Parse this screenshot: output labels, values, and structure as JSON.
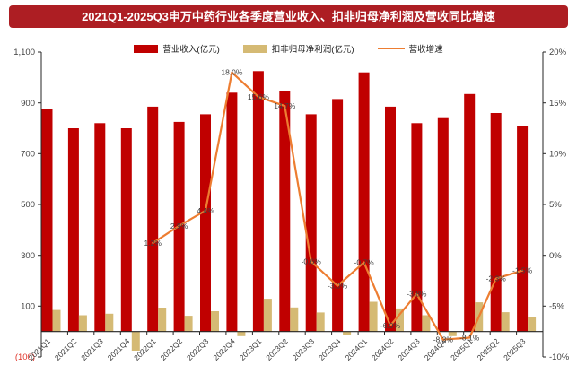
{
  "title": {
    "text": "2021Q1-2025Q3申万中药行业各季度营业收入、扣非归母净利润及营收同比增速"
  },
  "legend": {
    "items": [
      {
        "label": "营业收入(亿元)",
        "swatch": "revenue-bar-swatch"
      },
      {
        "label": "扣非归母净利润(亿元)",
        "swatch": "profit-bar-swatch"
      },
      {
        "label": "营收增速",
        "swatch": "growth-line-swatch"
      }
    ]
  },
  "colors": {
    "banner_bg": "#ad1e23",
    "banner_text": "#ffffff",
    "revenue_bar": "#c00000",
    "profit_bar": "#d5ba74",
    "growth_line": "#ed7d31",
    "axis_text": "#404040",
    "negative_tick_text": "#e0352b",
    "data_label_text": "#3f3f3f",
    "spine": "#262626"
  },
  "chart_data": {
    "type": "bar",
    "title": "2021Q1-2025Q3申万中药行业各季度营业收入、扣非归母净利润及营收同比增速",
    "categories": [
      "2021Q1",
      "2021Q2",
      "2021Q3",
      "2021Q4",
      "2022Q1",
      "2022Q2",
      "2022Q3",
      "2022Q4",
      "2023Q1",
      "2023Q2",
      "2023Q3",
      "2023Q4",
      "2024Q1",
      "2024Q2",
      "2024Q3",
      "2024Q4",
      "2025Q1",
      "2025Q2",
      "2025Q3"
    ],
    "series": [
      {
        "name": "营业收入(亿元)",
        "type": "bar",
        "axis": "left",
        "values": [
          875,
          800,
          820,
          800,
          885,
          825,
          855,
          940,
          1025,
          945,
          855,
          915,
          1020,
          885,
          820,
          840,
          935,
          860,
          810
        ]
      },
      {
        "name": "扣非归母净利润(亿元)",
        "type": "bar",
        "axis": "left",
        "values": [
          85,
          64,
          70,
          -75,
          94,
          62,
          80,
          -18,
          129,
          95,
          75,
          -13,
          117,
          91,
          64,
          -18,
          115,
          76,
          58
        ]
      },
      {
        "name": "营收增速",
        "type": "line",
        "axis": "right",
        "values": [
          null,
          null,
          null,
          null,
          1.2,
          2.9,
          4.4,
          18.0,
          15.6,
          14.7,
          -0.6,
          -3.0,
          -0.7,
          -6.9,
          -3.8,
          -8.3,
          -8.1,
          -2.3,
          -1.5
        ],
        "labels": [
          null,
          null,
          null,
          null,
          "1.2%",
          "2.9%",
          "4.4%",
          "18.0%",
          "15.6%",
          "14.7%",
          "-0.6%",
          "-3.0%",
          "-0.7%",
          "-6.9%",
          "-3.8%",
          "-8.3%",
          "-8.1%",
          "-2.3%",
          "-1.5%"
        ]
      }
    ],
    "left_axis": {
      "min": -100,
      "max": 1100,
      "ticks": [
        {
          "value": 1100,
          "label": "1,100",
          "negative": false
        },
        {
          "value": 900,
          "label": "900",
          "negative": false
        },
        {
          "value": 700,
          "label": "700",
          "negative": false
        },
        {
          "value": 500,
          "label": "500",
          "negative": false
        },
        {
          "value": 300,
          "label": "300",
          "negative": false
        },
        {
          "value": 100,
          "label": "100",
          "negative": false
        },
        {
          "value": -100,
          "label": "(100)",
          "negative": true
        }
      ]
    },
    "right_axis": {
      "min": -10,
      "max": 20,
      "ticks": [
        {
          "value": 20,
          "label": "20%"
        },
        {
          "value": 15,
          "label": "15%"
        },
        {
          "value": 10,
          "label": "10%"
        },
        {
          "value": 5,
          "label": "5%"
        },
        {
          "value": 0,
          "label": "0%"
        },
        {
          "value": -5,
          "label": "-5%"
        },
        {
          "value": -10,
          "label": "-10%"
        }
      ]
    },
    "grid": "off",
    "legend_position": "top"
  }
}
